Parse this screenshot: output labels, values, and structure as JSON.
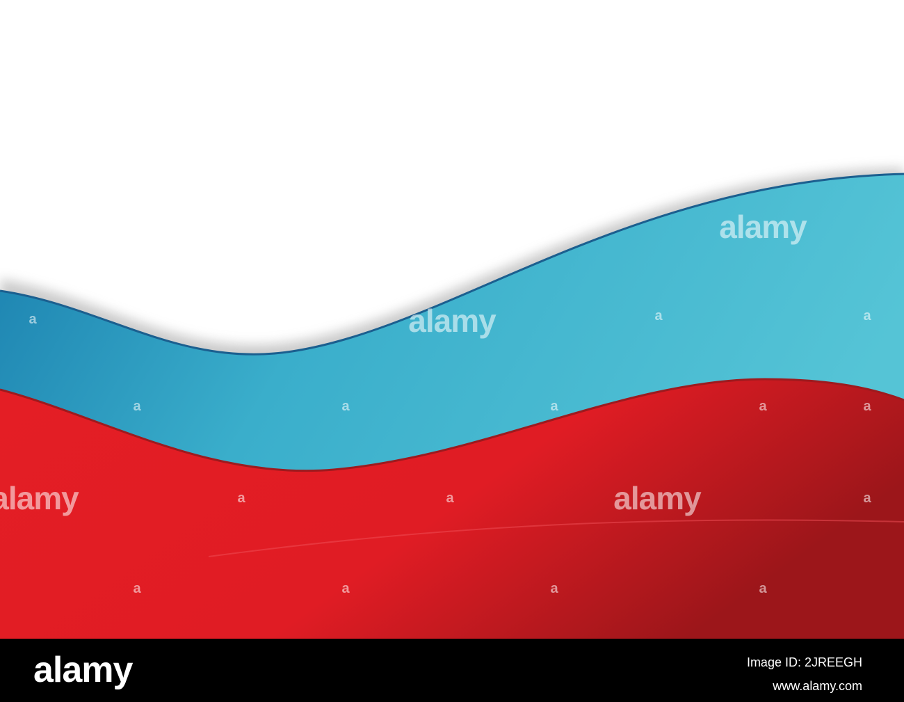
{
  "watermark": "alamy",
  "watermark_mark": "a",
  "footer": {
    "logo": "alamy",
    "image_id": "Image ID: 2JREEGH",
    "url": "www.alamy.com"
  }
}
